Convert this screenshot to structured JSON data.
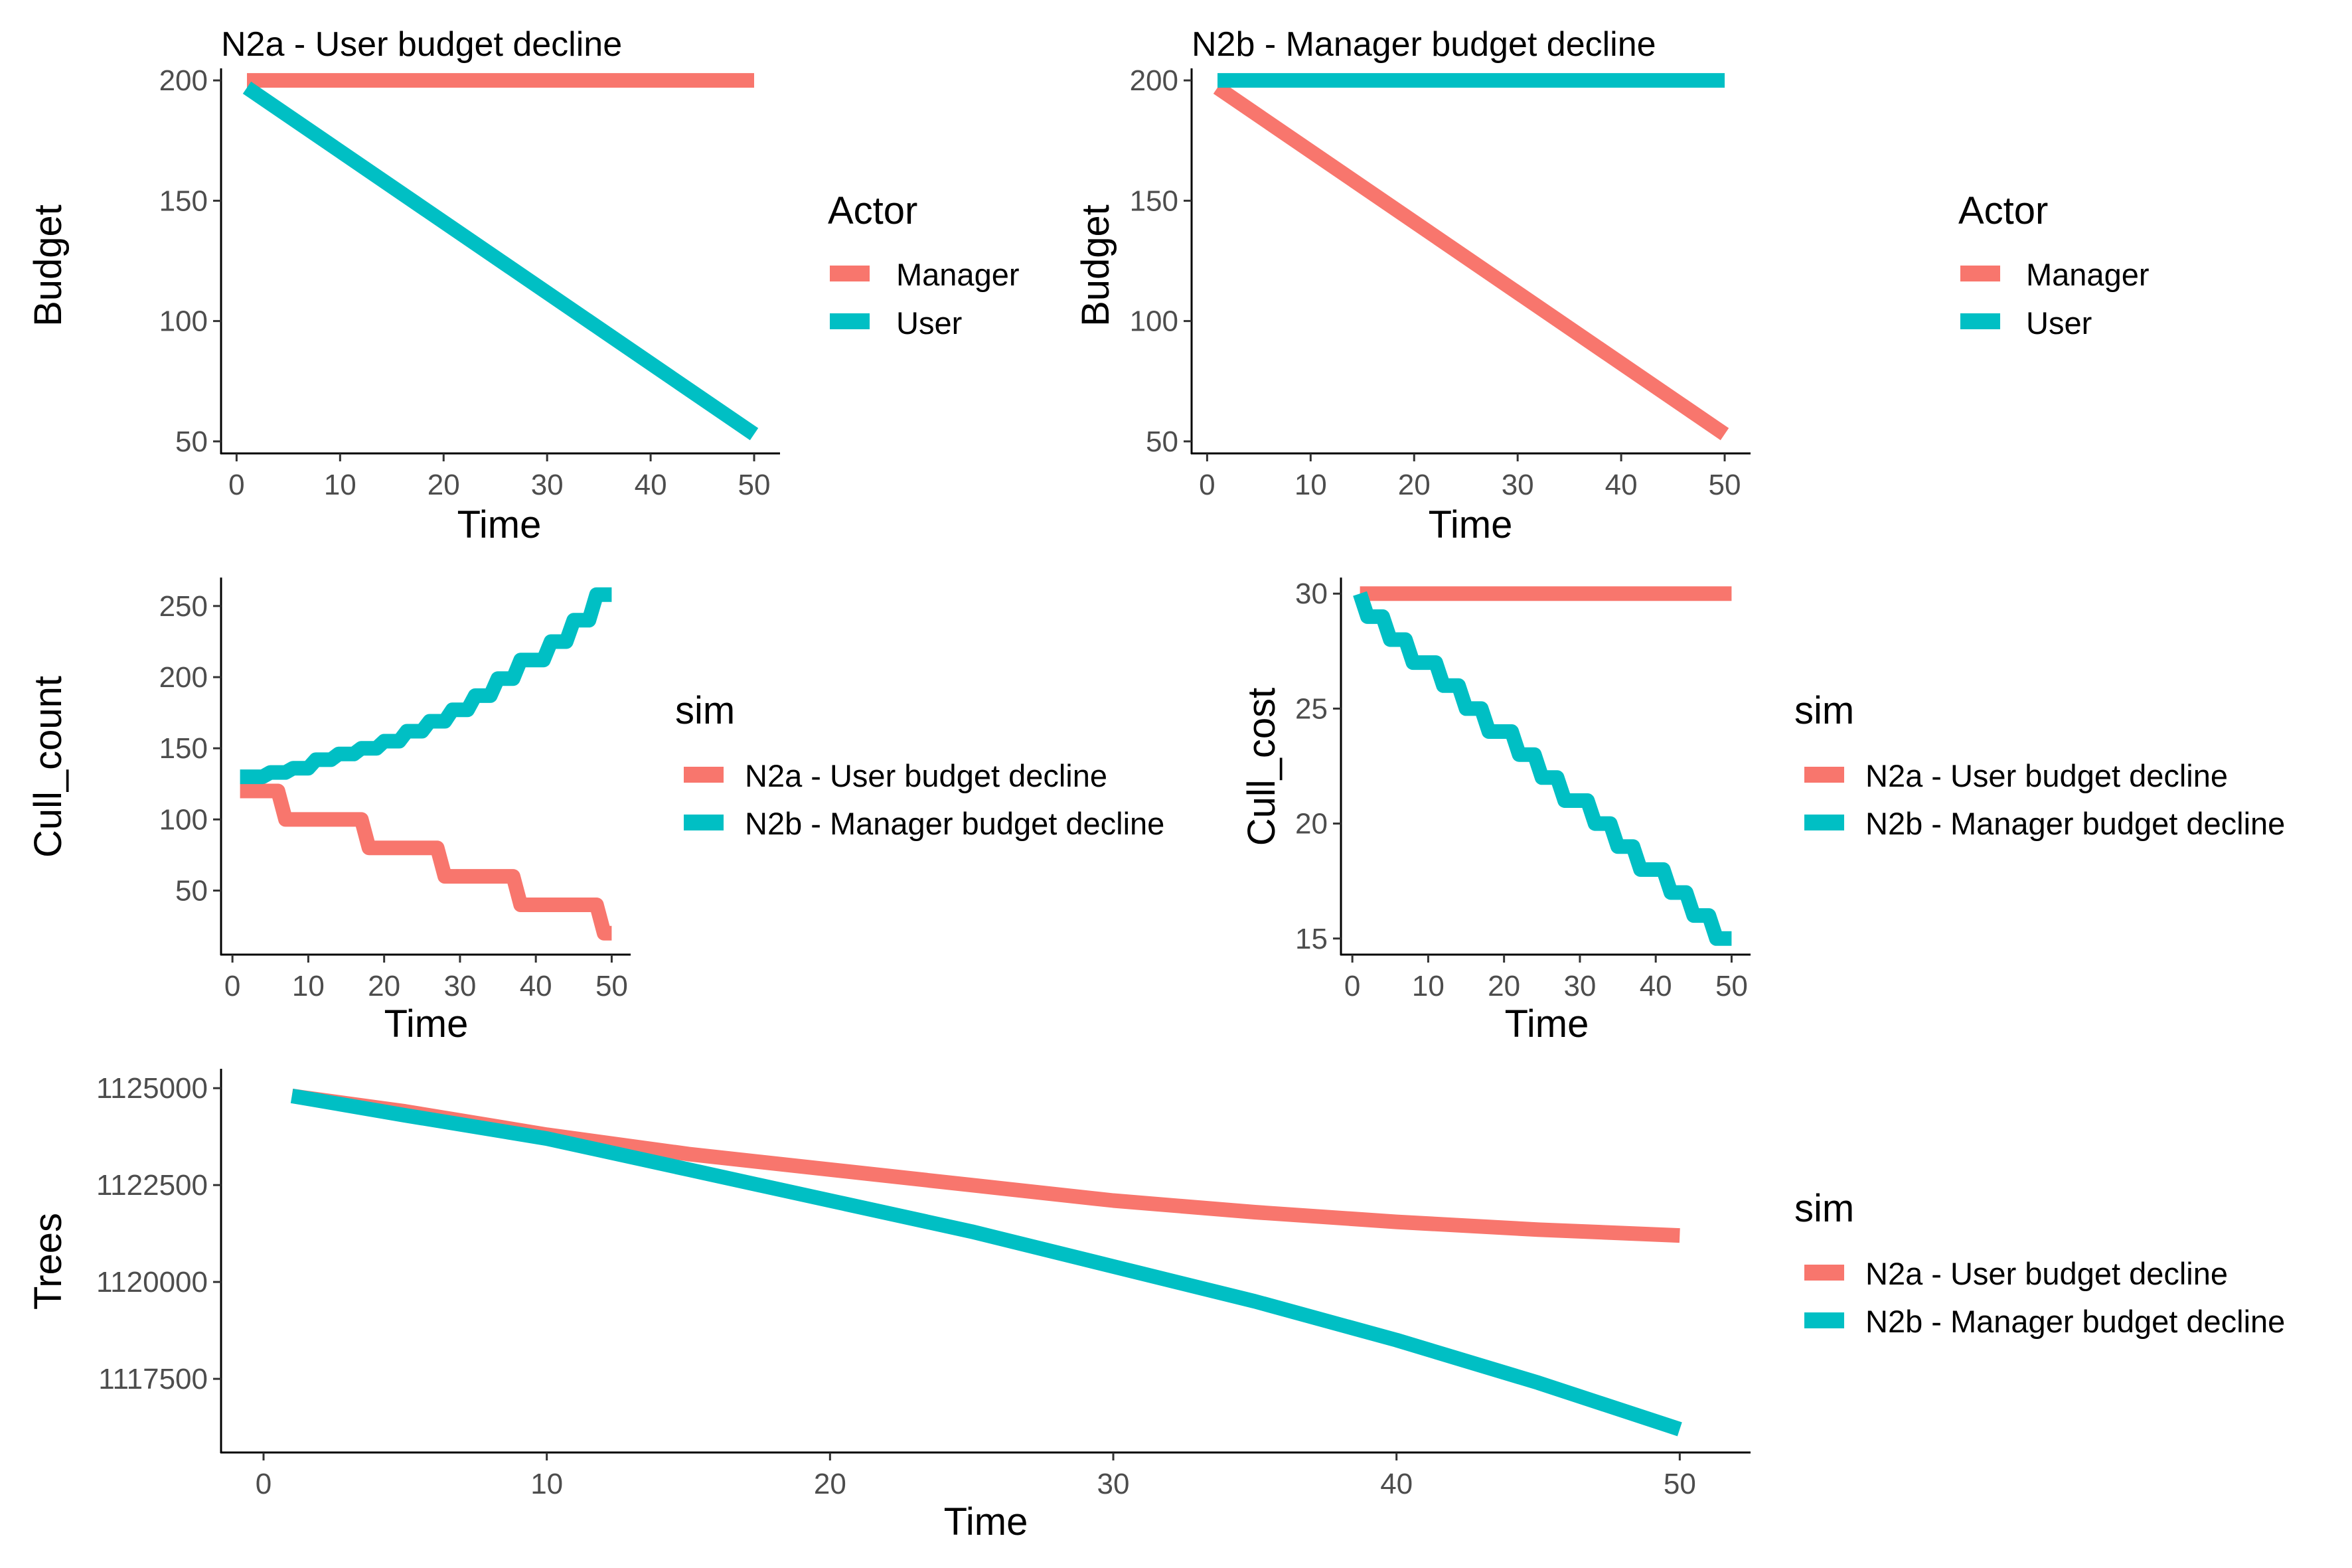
{
  "colors": {
    "manager": "#F8766D",
    "user": "#00BFC4",
    "n2a": "#F8766D",
    "n2b": "#00BFC4"
  },
  "chart_data": [
    {
      "type": "line",
      "title": "N2a - User budget decline",
      "xlabel": "Time",
      "ylabel": "Budget",
      "xlim": [
        -1.5,
        52.5
      ],
      "ylim": [
        45,
        205
      ],
      "xticks": [
        0,
        10,
        20,
        30,
        40,
        50
      ],
      "yticks": [
        50,
        100,
        150,
        200
      ],
      "legend": {
        "title": "Actor",
        "placement": "right"
      },
      "series": [
        {
          "name": "Manager",
          "color": "#F8766D",
          "x": [
            1,
            50
          ],
          "y": [
            200,
            200
          ]
        },
        {
          "name": "User",
          "color": "#00BFC4",
          "x": [
            1,
            50
          ],
          "y": [
            197,
            53
          ]
        }
      ]
    },
    {
      "type": "line",
      "title": "N2b - Manager budget decline",
      "xlabel": "Time",
      "ylabel": "Budget",
      "xlim": [
        -1.5,
        52.5
      ],
      "ylim": [
        45,
        205
      ],
      "xticks": [
        0,
        10,
        20,
        30,
        40,
        50
      ],
      "yticks": [
        50,
        100,
        150,
        200
      ],
      "legend": {
        "title": "Actor",
        "placement": "right"
      },
      "series": [
        {
          "name": "Manager",
          "color": "#F8766D",
          "x": [
            1,
            50
          ],
          "y": [
            197,
            53
          ]
        },
        {
          "name": "User",
          "color": "#00BFC4",
          "x": [
            1,
            50
          ],
          "y": [
            200,
            200
          ]
        }
      ]
    },
    {
      "type": "line",
      "title": "",
      "xlabel": "Time",
      "ylabel": "Cull_count",
      "xlim": [
        -1.5,
        52.5
      ],
      "ylim": [
        5,
        270
      ],
      "xticks": [
        0,
        10,
        20,
        30,
        40,
        50
      ],
      "yticks": [
        50,
        100,
        150,
        200,
        250
      ],
      "legend": {
        "title": "sim",
        "placement": "right"
      },
      "series": [
        {
          "name": "N2a - User budget decline",
          "color": "#F8766D",
          "x": [
            1,
            2,
            3,
            4,
            5,
            6,
            7,
            8,
            9,
            10,
            11,
            12,
            13,
            14,
            15,
            16,
            17,
            18,
            19,
            20,
            21,
            22,
            23,
            24,
            25,
            26,
            27,
            28,
            29,
            30,
            31,
            32,
            33,
            34,
            35,
            36,
            37,
            38,
            39,
            40,
            41,
            42,
            43,
            44,
            45,
            46,
            47,
            48,
            49,
            50
          ],
          "y": [
            120,
            120,
            120,
            120,
            120,
            120,
            100,
            100,
            100,
            100,
            100,
            100,
            100,
            100,
            100,
            100,
            100,
            80,
            80,
            80,
            80,
            80,
            80,
            80,
            80,
            80,
            80,
            60,
            60,
            60,
            60,
            60,
            60,
            60,
            60,
            60,
            60,
            40,
            40,
            40,
            40,
            40,
            40,
            40,
            40,
            40,
            40,
            40,
            20,
            20
          ]
        },
        {
          "name": "N2b - Manager budget decline",
          "color": "#00BFC4",
          "x": [
            1,
            2,
            3,
            4,
            5,
            6,
            7,
            8,
            9,
            10,
            11,
            12,
            13,
            14,
            15,
            16,
            17,
            18,
            19,
            20,
            21,
            22,
            23,
            24,
            25,
            26,
            27,
            28,
            29,
            30,
            31,
            32,
            33,
            34,
            35,
            36,
            37,
            38,
            39,
            40,
            41,
            42,
            43,
            44,
            45,
            46,
            47,
            48,
            49,
            50
          ],
          "y": [
            130,
            130,
            130,
            130,
            133,
            133,
            133,
            136,
            136,
            136,
            142,
            142,
            142,
            146,
            146,
            146,
            150,
            150,
            150,
            155,
            155,
            155,
            162,
            162,
            162,
            169,
            169,
            169,
            177,
            177,
            177,
            187,
            187,
            187,
            199,
            199,
            199,
            212,
            212,
            212,
            212,
            225,
            225,
            225,
            240,
            240,
            240,
            258,
            258,
            258
          ]
        }
      ]
    },
    {
      "type": "line",
      "title": "",
      "xlabel": "Time",
      "ylabel": "Cull_cost",
      "xlim": [
        -1.5,
        52.5
      ],
      "ylim": [
        14.3,
        30.7
      ],
      "xticks": [
        0,
        10,
        20,
        30,
        40,
        50
      ],
      "yticks": [
        15,
        20,
        25,
        30
      ],
      "legend": {
        "title": "sim",
        "placement": "right"
      },
      "series": [
        {
          "name": "N2a - User budget decline",
          "color": "#F8766D",
          "x": [
            1,
            50
          ],
          "y": [
            30,
            30
          ]
        },
        {
          "name": "N2b - Manager budget decline",
          "color": "#00BFC4",
          "x": [
            1,
            2,
            3,
            4,
            5,
            6,
            7,
            8,
            9,
            10,
            11,
            12,
            13,
            14,
            15,
            16,
            17,
            18,
            19,
            20,
            21,
            22,
            23,
            24,
            25,
            26,
            27,
            28,
            29,
            30,
            31,
            32,
            33,
            34,
            35,
            36,
            37,
            38,
            39,
            40,
            41,
            42,
            43,
            44,
            45,
            46,
            47,
            48,
            49,
            50
          ],
          "y": [
            30,
            29,
            29,
            29,
            28,
            28,
            28,
            27,
            27,
            27,
            27,
            26,
            26,
            26,
            25,
            25,
            25,
            24,
            24,
            24,
            24,
            23,
            23,
            23,
            22,
            22,
            22,
            21,
            21,
            21,
            21,
            20,
            20,
            20,
            19,
            19,
            19,
            18,
            18,
            18,
            18,
            17,
            17,
            17,
            16,
            16,
            16,
            15,
            15,
            15
          ]
        }
      ]
    },
    {
      "type": "line",
      "title": "",
      "xlabel": "Time",
      "ylabel": "Trees",
      "xlim": [
        -1.5,
        52.5
      ],
      "ylim": [
        1115600,
        1125500
      ],
      "xticks": [
        0,
        10,
        20,
        30,
        40,
        50
      ],
      "yticks": [
        1117500,
        1120000,
        1122500,
        1125000
      ],
      "legend": {
        "title": "sim",
        "placement": "right"
      },
      "series": [
        {
          "name": "N2a - User budget decline",
          "color": "#F8766D",
          "x": [
            1,
            5,
            10,
            15,
            20,
            25,
            30,
            35,
            40,
            45,
            50
          ],
          "y": [
            1124800,
            1124400,
            1123800,
            1123300,
            1122900,
            1122500,
            1122100,
            1121800,
            1121550,
            1121350,
            1121200
          ]
        },
        {
          "name": "N2b - Manager budget decline",
          "color": "#00BFC4",
          "x": [
            1,
            5,
            10,
            15,
            20,
            25,
            30,
            35,
            40,
            45,
            50
          ],
          "y": [
            1124800,
            1124300,
            1123700,
            1122900,
            1122100,
            1121300,
            1120400,
            1119500,
            1118500,
            1117400,
            1116200
          ]
        }
      ]
    }
  ]
}
